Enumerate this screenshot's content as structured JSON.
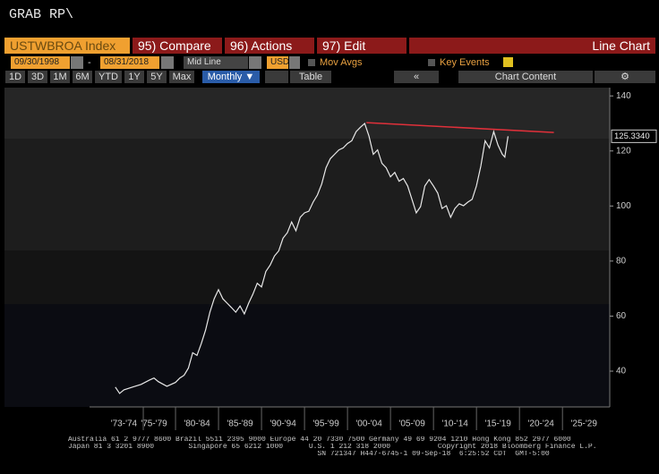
{
  "header": {
    "command": "GRAB RP\\"
  },
  "toolbar": {
    "ticker": "USTWBROA Index",
    "compare": "95) Compare",
    "actions": "96) Actions",
    "edit": "97) Edit",
    "chart_type": "Line Chart"
  },
  "settings": {
    "start_date": "09/30/1998",
    "dash": "-",
    "end_date": "08/31/2018",
    "line_style": "Mid Line",
    "currency": "USD",
    "mov_avgs": "Mov Avgs",
    "key_events": "Key Events"
  },
  "periods": [
    "1D",
    "3D",
    "1M",
    "6M",
    "YTD",
    "1Y",
    "5Y",
    "Max"
  ],
  "frequency": "Monthly ▼",
  "table": "Table",
  "chart_content": "Chart Content",
  "chart_data": {
    "type": "line",
    "xlim": [
      1970,
      2030.5
    ],
    "ylim": [
      27,
      143
    ],
    "xticks": [
      {
        "value": 1974,
        "label": "'73-'74"
      },
      {
        "value": 1977.5,
        "label": "'75-'79"
      },
      {
        "value": 1982.5,
        "label": "'80-'84"
      },
      {
        "value": 1987.5,
        "label": "'85-'89"
      },
      {
        "value": 1992.5,
        "label": "'90-'94"
      },
      {
        "value": 1997.5,
        "label": "'95-'99"
      },
      {
        "value": 2002.5,
        "label": "'00-'04"
      },
      {
        "value": 2007.5,
        "label": "'05-'09"
      },
      {
        "value": 2012.5,
        "label": "'10-'14"
      },
      {
        "value": 2017.5,
        "label": "'15-'19"
      },
      {
        "value": 2022.5,
        "label": "'20-'24"
      },
      {
        "value": 2027.5,
        "label": "'25-'29"
      }
    ],
    "yticks": [
      40,
      60,
      80,
      100,
      120,
      140
    ],
    "series": [
      {
        "name": "USTWBROA Index",
        "color": "#e8e8e8",
        "x": [
          1973,
          1973.5,
          1974,
          1975,
          1976,
          1977,
          1977.5,
          1978,
          1979,
          1980,
          1980.5,
          1981,
          1981.5,
          1982,
          1982.5,
          1983,
          1983.5,
          1984,
          1984.5,
          1985,
          1985.5,
          1986,
          1986.5,
          1987,
          1987.5,
          1988,
          1988.5,
          1989,
          1989.5,
          1990,
          1990.5,
          1991,
          1991.5,
          1992,
          1992.5,
          1993,
          1993.5,
          1994,
          1994.5,
          1995,
          1995.5,
          1996,
          1996.5,
          1997,
          1997.5,
          1998,
          1998.5,
          1999,
          1999.5,
          2000,
          2000.5,
          2001,
          2001.5,
          2002,
          2002.5,
          2003,
          2003.5,
          2004,
          2004.5,
          2005,
          2005.5,
          2006,
          2006.5,
          2007,
          2007.5,
          2008,
          2008.5,
          2009,
          2009.5,
          2010,
          2010.5,
          2011,
          2011.5,
          2012,
          2012.5,
          2013,
          2013.5,
          2014,
          2014.5,
          2015,
          2015.5,
          2016,
          2016.5,
          2017,
          2017.5,
          2018,
          2018.3,
          2018.67
        ],
        "values": [
          34.2,
          31.9,
          33.2,
          34.2,
          35.2,
          36.8,
          37.5,
          36.2,
          34.5,
          35.9,
          37.5,
          38.5,
          41.1,
          46.7,
          45.7,
          50,
          54.9,
          61.4,
          66.3,
          69.6,
          66.3,
          64.7,
          63.1,
          61.4,
          63.7,
          60.8,
          64.7,
          68,
          71.9,
          70.6,
          76.2,
          78.5,
          81.8,
          83.7,
          88.3,
          90.3,
          94.2,
          91,
          95.9,
          97.5,
          98.1,
          101.4,
          104,
          108,
          113.9,
          117.2,
          118.8,
          120.4,
          121.1,
          122.7,
          123.7,
          127,
          128.6,
          130,
          125.4,
          118.8,
          120.4,
          115.5,
          113.9,
          110.6,
          112.2,
          109,
          110,
          107.3,
          102.4,
          97.5,
          99.8,
          107.3,
          109.6,
          107.3,
          104.7,
          99.1,
          100.1,
          95.9,
          99.1,
          100.8,
          100.1,
          101.4,
          102.4,
          107.3,
          114.5,
          123.7,
          121.1,
          127,
          122.1,
          118.8,
          117.8,
          125.334
        ]
      }
    ],
    "last_price": {
      "value": 125.334,
      "label": "125.3340"
    },
    "trendline": {
      "color": "#e0303a",
      "x": [
        2002.2,
        2024
      ],
      "values": [
        130.3,
        126.7
      ]
    }
  },
  "footer": {
    "lines": [
      "Australia 61 2 9777 8600 Brazil 5511 2395 9000 Europe 44 20 7330 7500 Germany 49 69 9204 1210 Hong Kong 852 2977 6000",
      "Japan 81 3 3201 8900        Singapore 65 6212 1000      U.S. 1 212 318 2000           Copyright 2018 Bloomberg Finance L.P.",
      "                                                          SN 721347 H447-6745-1 09-Sep-18  6:25:52 CDT  GMT-5:00"
    ]
  }
}
